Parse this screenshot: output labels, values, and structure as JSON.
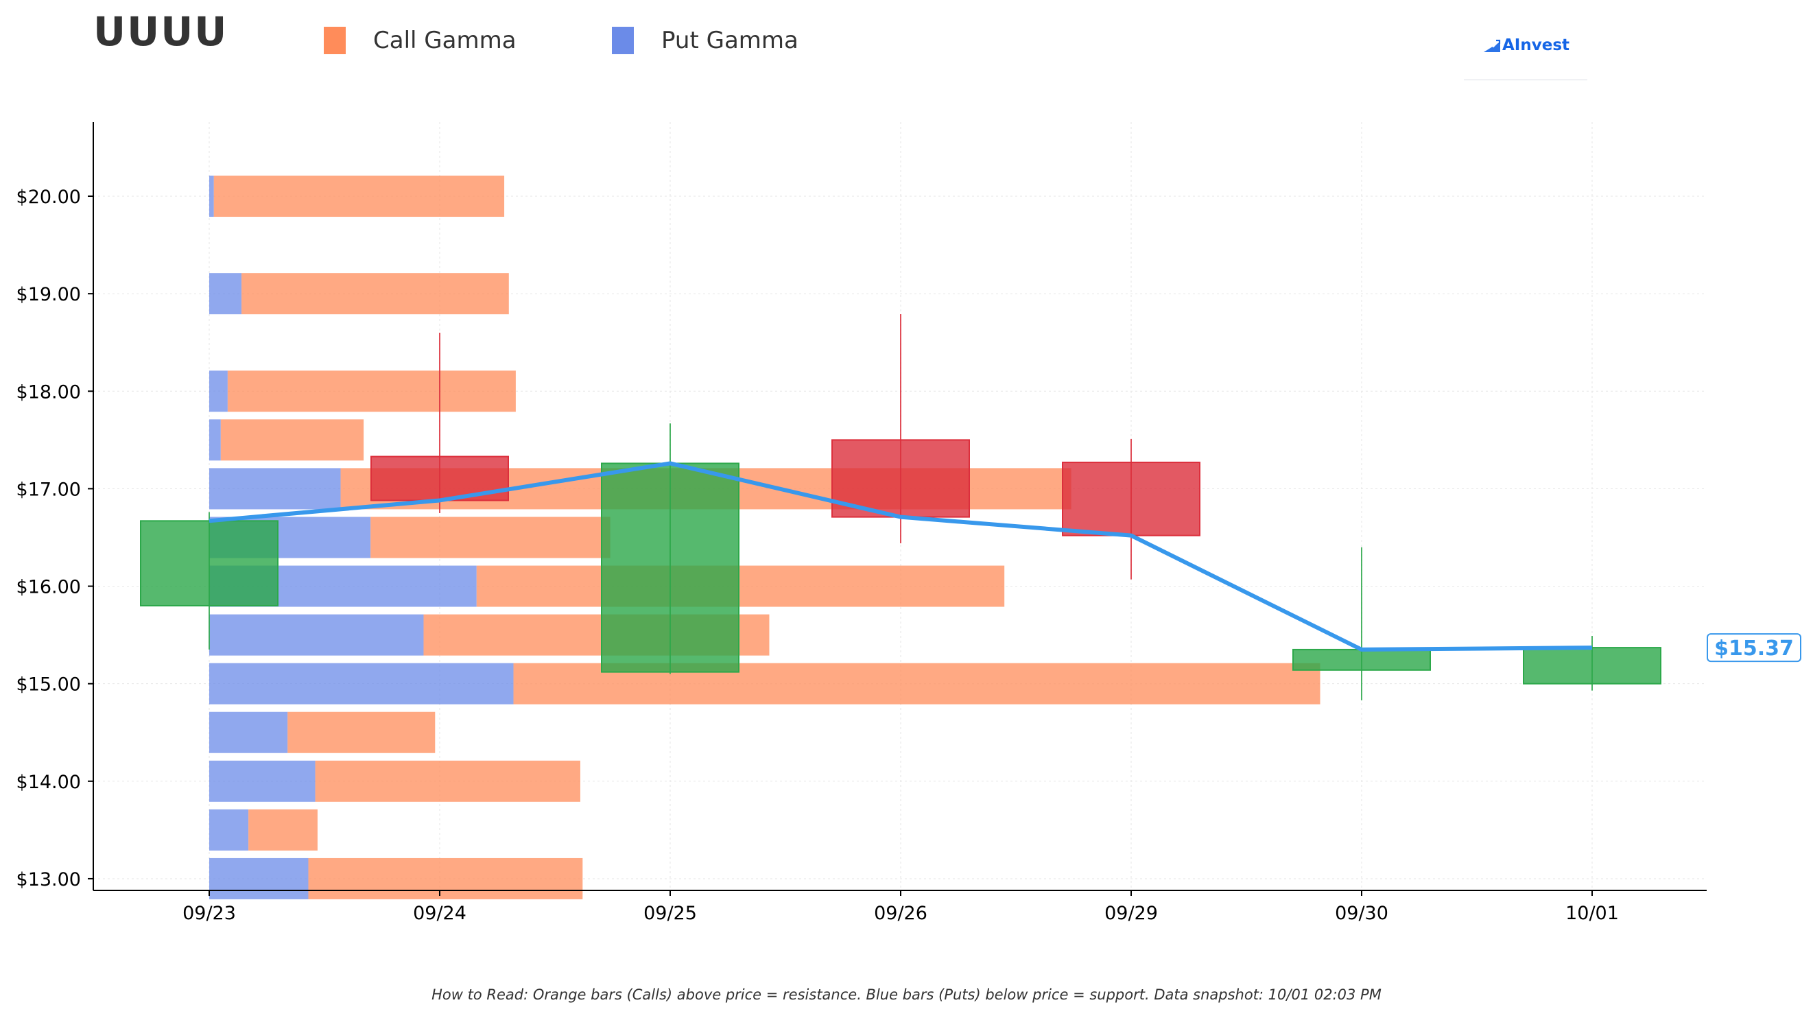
{
  "header": {
    "ticker": "UUUU",
    "brand": "AInvest"
  },
  "legend": [
    {
      "label": "Call Gamma",
      "color": "#ff8c5a"
    },
    {
      "label": "Put Gamma",
      "color": "#6b8be8"
    }
  ],
  "caption": "How to Read: Orange bars (Calls) above price = resistance. Blue bars (Puts) below price = support. Data snapshot: 10/01 02:03 PM",
  "colors": {
    "call": "#ff8c5a",
    "put": "#6b8be8",
    "up": "#2ca84a",
    "down": "#dc2f3c",
    "price_line": "#3898ec"
  },
  "chart_data": {
    "type": "candlestick with gamma exposure bars",
    "x_categories": [
      "09/23",
      "09/24",
      "09/25",
      "09/26",
      "09/29",
      "09/30",
      "10/01"
    ],
    "y_tick_labels": [
      "$13.00",
      "$14.00",
      "$15.00",
      "$16.00",
      "$17.00",
      "$18.00",
      "$19.00",
      "$20.00"
    ],
    "y_ticks": [
      13,
      14,
      15,
      16,
      17,
      18,
      19,
      20
    ],
    "ylim": [
      12.88,
      20.76
    ],
    "grid": true,
    "legend_position": "top-left",
    "candles": [
      {
        "date": "09/23",
        "open": 15.8,
        "high": 16.76,
        "low": 15.35,
        "close": 16.67
      },
      {
        "date": "09/24",
        "open": 17.33,
        "high": 18.6,
        "low": 16.75,
        "close": 16.88
      },
      {
        "date": "09/25",
        "open": 15.12,
        "high": 17.67,
        "low": 15.1,
        "close": 17.26
      },
      {
        "date": "09/26",
        "open": 17.5,
        "high": 18.79,
        "low": 16.44,
        "close": 16.71
      },
      {
        "date": "09/29",
        "open": 17.27,
        "high": 17.51,
        "low": 16.07,
        "close": 16.52
      },
      {
        "date": "09/30",
        "open": 15.14,
        "high": 16.4,
        "low": 14.83,
        "close": 15.35
      },
      {
        "date": "10/01",
        "open": 15.0,
        "high": 15.49,
        "low": 14.93,
        "close": 15.37
      }
    ],
    "price_line": [
      16.67,
      16.88,
      17.26,
      16.71,
      16.52,
      15.35,
      15.37
    ],
    "current_price_label": "$15.37",
    "gamma_bars": [
      {
        "strike": 13.0,
        "put": 0.43,
        "call": 1.19
      },
      {
        "strike": 13.5,
        "put": 0.17,
        "call": 0.3
      },
      {
        "strike": 14.0,
        "put": 0.46,
        "call": 1.15
      },
      {
        "strike": 14.5,
        "put": 0.34,
        "call": 0.64
      },
      {
        "strike": 15.0,
        "put": 1.32,
        "call": 3.5
      },
      {
        "strike": 15.5,
        "put": 0.93,
        "call": 1.5
      },
      {
        "strike": 16.0,
        "put": 1.16,
        "call": 2.29
      },
      {
        "strike": 16.5,
        "put": 0.7,
        "call": 1.04
      },
      {
        "strike": 17.0,
        "put": 0.57,
        "call": 3.17
      },
      {
        "strike": 17.5,
        "put": 0.05,
        "call": 0.62
      },
      {
        "strike": 18.0,
        "put": 0.08,
        "call": 1.25
      },
      {
        "strike": 19.0,
        "put": 0.14,
        "call": 1.16
      },
      {
        "strike": 20.0,
        "put": 0.02,
        "call": 1.26
      }
    ]
  }
}
